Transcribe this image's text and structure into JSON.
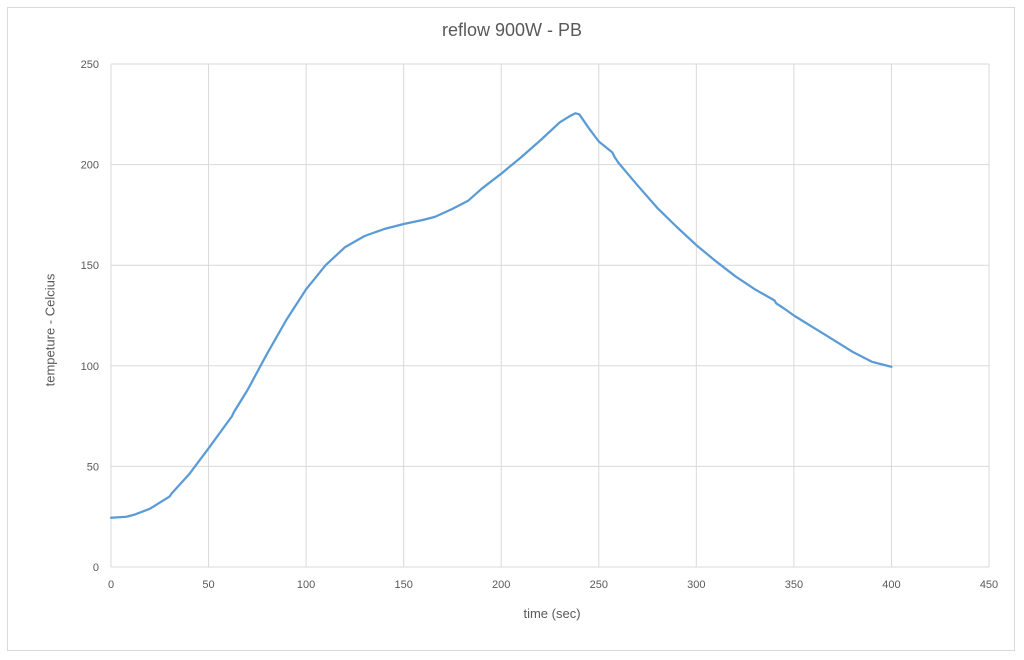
{
  "chart_data": {
    "type": "line",
    "title": "reflow 900W - PB",
    "xlabel": "time (sec)",
    "ylabel": "tempeture - Celcius",
    "xlim": [
      0,
      450
    ],
    "ylim": [
      0,
      250
    ],
    "xticks": [
      0,
      50,
      100,
      150,
      200,
      250,
      300,
      350,
      400,
      450
    ],
    "yticks": [
      0,
      50,
      100,
      150,
      200,
      250
    ],
    "grid": true,
    "legend": "none",
    "line_color": "#5B9BD5",
    "series": [
      {
        "x": [
          0,
          8,
          12,
          20,
          30,
          31,
          40,
          50,
          62,
          63,
          70,
          80,
          90,
          100,
          110,
          120,
          130,
          140,
          150,
          160,
          166,
          175,
          183,
          190,
          200,
          210,
          220,
          230,
          235,
          238,
          240,
          245,
          250,
          257,
          258,
          260,
          270,
          280,
          290,
          300,
          310,
          320,
          330,
          340,
          341,
          345,
          350,
          355,
          360,
          365,
          370,
          380,
          390,
          400
        ],
        "y": [
          24.5,
          25,
          26,
          29,
          35,
          36.5,
          46,
          59,
          75,
          77,
          88,
          106,
          123,
          138,
          150,
          159,
          164.5,
          168,
          170.5,
          172.5,
          174,
          178,
          182,
          188,
          195.5,
          203.5,
          212,
          221,
          224,
          225.5,
          225,
          218,
          211.5,
          206,
          204,
          201,
          189.5,
          178.5,
          169,
          160,
          152,
          144.5,
          138,
          132.5,
          131,
          128.5,
          125,
          122,
          119,
          116,
          113,
          107,
          102,
          99.5
        ]
      }
    ]
  }
}
